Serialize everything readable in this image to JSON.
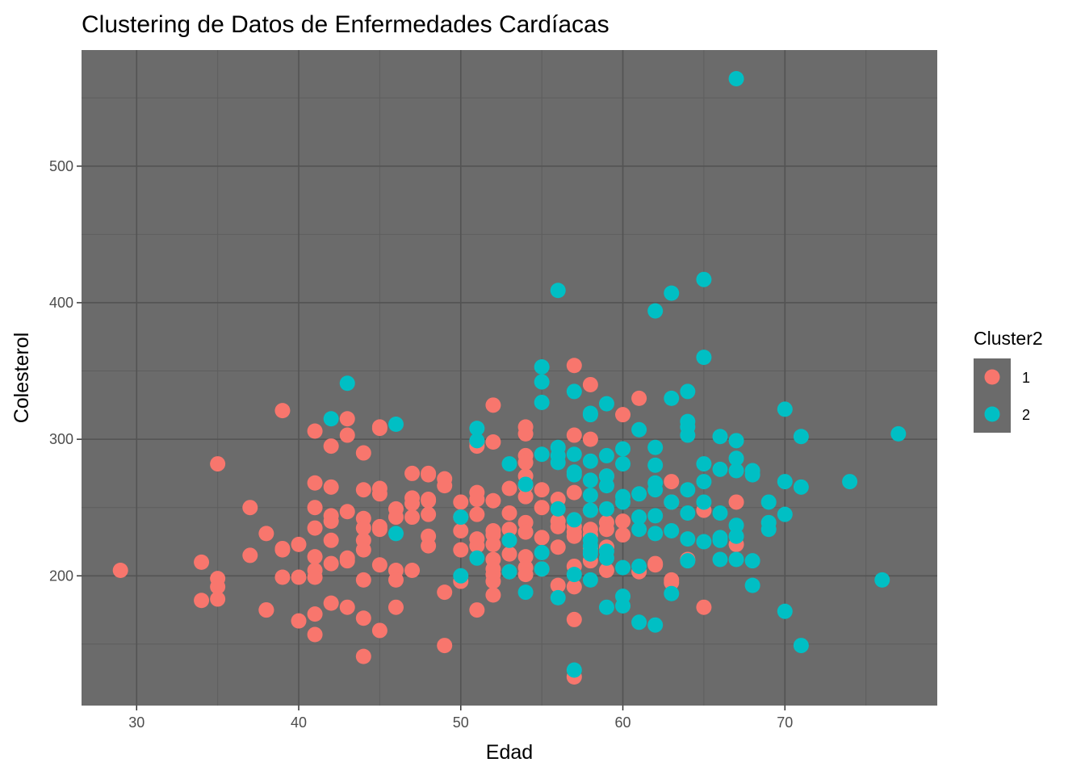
{
  "chart_data": {
    "type": "scatter",
    "title": "Clustering de Datos de Enfermedades Cardíacas",
    "xlabel": "Edad",
    "ylabel": "Colesterol",
    "xlim": [
      26.6,
      79.4
    ],
    "ylim": [
      105,
      585
    ],
    "x_ticks": [
      30,
      40,
      50,
      60,
      70
    ],
    "y_ticks": [
      200,
      300,
      400,
      500
    ],
    "x_minor": [
      35,
      45,
      55,
      65,
      75
    ],
    "y_minor": [
      150,
      250,
      350,
      450,
      550
    ],
    "grid": true,
    "legend": {
      "title": "Cluster2",
      "position": "right"
    },
    "panel_color": "#6b6b6b",
    "series": [
      {
        "name": "1",
        "color": "#f8766d",
        "points": [
          [
            29,
            204
          ],
          [
            34,
            210
          ],
          [
            34,
            182
          ],
          [
            35,
            282
          ],
          [
            35,
            198
          ],
          [
            35,
            192
          ],
          [
            35,
            183
          ],
          [
            37,
            250
          ],
          [
            37,
            215
          ],
          [
            38,
            231
          ],
          [
            38,
            175
          ],
          [
            38,
            175
          ],
          [
            39,
            321
          ],
          [
            39,
            220
          ],
          [
            39,
            219
          ],
          [
            39,
            199
          ],
          [
            40,
            223
          ],
          [
            40,
            199
          ],
          [
            40,
            167
          ],
          [
            41,
            306
          ],
          [
            41,
            268
          ],
          [
            41,
            250
          ],
          [
            41,
            235
          ],
          [
            41,
            214
          ],
          [
            41,
            204
          ],
          [
            41,
            199
          ],
          [
            41,
            172
          ],
          [
            41,
            157
          ],
          [
            42,
            295
          ],
          [
            42,
            265
          ],
          [
            42,
            244
          ],
          [
            42,
            240
          ],
          [
            42,
            226
          ],
          [
            42,
            209
          ],
          [
            42,
            180
          ],
          [
            43,
            315
          ],
          [
            43,
            303
          ],
          [
            43,
            247
          ],
          [
            43,
            213
          ],
          [
            43,
            211
          ],
          [
            43,
            177
          ],
          [
            44,
            290
          ],
          [
            44,
            263
          ],
          [
            44,
            242
          ],
          [
            44,
            235
          ],
          [
            44,
            226
          ],
          [
            44,
            219
          ],
          [
            44,
            197
          ],
          [
            44,
            169
          ],
          [
            44,
            141
          ],
          [
            45,
            309
          ],
          [
            45,
            308
          ],
          [
            45,
            264
          ],
          [
            45,
            260
          ],
          [
            45,
            236
          ],
          [
            45,
            234
          ],
          [
            45,
            208
          ],
          [
            45,
            160
          ],
          [
            46,
            249
          ],
          [
            46,
            243
          ],
          [
            46,
            204
          ],
          [
            46,
            197
          ],
          [
            46,
            177
          ],
          [
            47,
            275
          ],
          [
            47,
            257
          ],
          [
            47,
            253
          ],
          [
            47,
            243
          ],
          [
            47,
            204
          ],
          [
            48,
            275
          ],
          [
            48,
            274
          ],
          [
            48,
            256
          ],
          [
            48,
            255
          ],
          [
            48,
            245
          ],
          [
            48,
            229
          ],
          [
            48,
            222
          ],
          [
            49,
            271
          ],
          [
            49,
            266
          ],
          [
            49,
            188
          ],
          [
            49,
            149
          ],
          [
            50,
            254
          ],
          [
            50,
            243
          ],
          [
            50,
            233
          ],
          [
            50,
            219
          ],
          [
            50,
            196
          ],
          [
            51,
            298
          ],
          [
            51,
            295
          ],
          [
            51,
            261
          ],
          [
            51,
            256
          ],
          [
            51,
            245
          ],
          [
            51,
            227
          ],
          [
            51,
            222
          ],
          [
            51,
            175
          ],
          [
            52,
            325
          ],
          [
            52,
            298
          ],
          [
            52,
            255
          ],
          [
            52,
            233
          ],
          [
            52,
            230
          ],
          [
            52,
            223
          ],
          [
            52,
            212
          ],
          [
            52,
            205
          ],
          [
            52,
            201
          ],
          [
            52,
            196
          ],
          [
            52,
            186
          ],
          [
            53,
            264
          ],
          [
            53,
            246
          ],
          [
            53,
            234
          ],
          [
            53,
            216
          ],
          [
            53,
            203
          ],
          [
            54,
            309
          ],
          [
            54,
            304
          ],
          [
            54,
            288
          ],
          [
            54,
            283
          ],
          [
            54,
            273
          ],
          [
            54,
            266
          ],
          [
            54,
            258
          ],
          [
            54,
            239
          ],
          [
            54,
            232
          ],
          [
            54,
            214
          ],
          [
            54,
            206
          ],
          [
            54,
            201
          ],
          [
            55,
            263
          ],
          [
            55,
            250
          ],
          [
            55,
            228
          ],
          [
            55,
            205
          ],
          [
            56,
            256
          ],
          [
            56,
            240
          ],
          [
            56,
            236
          ],
          [
            56,
            221
          ],
          [
            56,
            193
          ],
          [
            57,
            354
          ],
          [
            57,
            303
          ],
          [
            57,
            261
          ],
          [
            57,
            241
          ],
          [
            57,
            236
          ],
          [
            57,
            232
          ],
          [
            57,
            229
          ],
          [
            57,
            207
          ],
          [
            57,
            192
          ],
          [
            57,
            168
          ],
          [
            57,
            126
          ],
          [
            58,
            340
          ],
          [
            58,
            300
          ],
          [
            58,
            248
          ],
          [
            58,
            234
          ],
          [
            58,
            230
          ],
          [
            58,
            220
          ],
          [
            58,
            211
          ],
          [
            59,
            273
          ],
          [
            59,
            239
          ],
          [
            59,
            234
          ],
          [
            59,
            221
          ],
          [
            59,
            204
          ],
          [
            60,
            318
          ],
          [
            60,
            240
          ],
          [
            60,
            230
          ],
          [
            61,
            330
          ],
          [
            61,
            203
          ],
          [
            62,
            209
          ],
          [
            62,
            208
          ],
          [
            63,
            269
          ],
          [
            63,
            254
          ],
          [
            63,
            197
          ],
          [
            63,
            195
          ],
          [
            64,
            212
          ],
          [
            65,
            248
          ],
          [
            65,
            177
          ],
          [
            67,
            254
          ],
          [
            67,
            223
          ]
        ]
      },
      {
        "name": "2",
        "color": "#00bfc4",
        "points": [
          [
            42,
            315
          ],
          [
            43,
            341
          ],
          [
            46,
            311
          ],
          [
            46,
            231
          ],
          [
            50,
            243
          ],
          [
            50,
            200
          ],
          [
            51,
            308
          ],
          [
            51,
            299
          ],
          [
            51,
            213
          ],
          [
            53,
            282
          ],
          [
            53,
            226
          ],
          [
            53,
            203
          ],
          [
            54,
            267
          ],
          [
            54,
            188
          ],
          [
            55,
            353
          ],
          [
            55,
            342
          ],
          [
            55,
            327
          ],
          [
            55,
            289
          ],
          [
            55,
            217
          ],
          [
            55,
            205
          ],
          [
            56,
            409
          ],
          [
            56,
            294
          ],
          [
            56,
            288
          ],
          [
            56,
            283
          ],
          [
            56,
            249
          ],
          [
            56,
            184
          ],
          [
            57,
            335
          ],
          [
            57,
            289
          ],
          [
            57,
            276
          ],
          [
            57,
            274
          ],
          [
            57,
            241
          ],
          [
            57,
            201
          ],
          [
            57,
            131
          ],
          [
            58,
            319
          ],
          [
            58,
            318
          ],
          [
            58,
            284
          ],
          [
            58,
            270
          ],
          [
            58,
            259
          ],
          [
            58,
            248
          ],
          [
            58,
            226
          ],
          [
            58,
            222
          ],
          [
            58,
            218
          ],
          [
            58,
            216
          ],
          [
            58,
            197
          ],
          [
            59,
            326
          ],
          [
            59,
            288
          ],
          [
            59,
            273
          ],
          [
            59,
            266
          ],
          [
            59,
            249
          ],
          [
            59,
            218
          ],
          [
            59,
            213
          ],
          [
            59,
            177
          ],
          [
            60,
            293
          ],
          [
            60,
            282
          ],
          [
            60,
            258
          ],
          [
            60,
            254
          ],
          [
            60,
            206
          ],
          [
            60,
            185
          ],
          [
            60,
            178
          ],
          [
            61,
            307
          ],
          [
            61,
            260
          ],
          [
            61,
            243
          ],
          [
            61,
            234
          ],
          [
            61,
            207
          ],
          [
            61,
            166
          ],
          [
            62,
            394
          ],
          [
            62,
            294
          ],
          [
            62,
            281
          ],
          [
            62,
            268
          ],
          [
            62,
            263
          ],
          [
            62,
            244
          ],
          [
            62,
            231
          ],
          [
            62,
            164
          ],
          [
            63,
            407
          ],
          [
            63,
            330
          ],
          [
            63,
            254
          ],
          [
            63,
            233
          ],
          [
            63,
            187
          ],
          [
            64,
            335
          ],
          [
            64,
            313
          ],
          [
            64,
            309
          ],
          [
            64,
            303
          ],
          [
            64,
            263
          ],
          [
            64,
            246
          ],
          [
            64,
            227
          ],
          [
            64,
            211
          ],
          [
            65,
            417
          ],
          [
            65,
            360
          ],
          [
            65,
            282
          ],
          [
            65,
            269
          ],
          [
            65,
            254
          ],
          [
            65,
            225
          ],
          [
            66,
            302
          ],
          [
            66,
            278
          ],
          [
            66,
            246
          ],
          [
            66,
            228
          ],
          [
            66,
            226
          ],
          [
            66,
            212
          ],
          [
            67,
            564
          ],
          [
            67,
            299
          ],
          [
            67,
            286
          ],
          [
            67,
            277
          ],
          [
            67,
            237
          ],
          [
            67,
            229
          ],
          [
            67,
            212
          ],
          [
            68,
            277
          ],
          [
            68,
            274
          ],
          [
            68,
            211
          ],
          [
            68,
            193
          ],
          [
            69,
            254
          ],
          [
            69,
            239
          ],
          [
            69,
            234
          ],
          [
            70,
            322
          ],
          [
            70,
            269
          ],
          [
            70,
            245
          ],
          [
            70,
            174
          ],
          [
            71,
            302
          ],
          [
            71,
            265
          ],
          [
            71,
            149
          ],
          [
            74,
            269
          ],
          [
            76,
            197
          ],
          [
            77,
            304
          ]
        ]
      }
    ]
  }
}
